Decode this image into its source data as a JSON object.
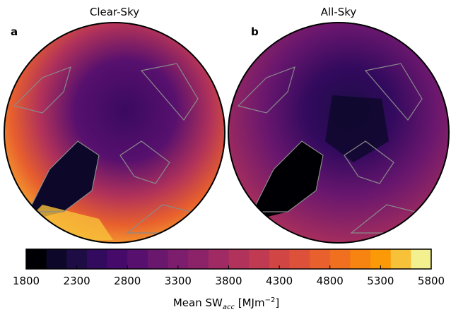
{
  "panels": [
    {
      "label": "a",
      "title": "Clear-Sky"
    },
    {
      "label": "b",
      "title": "All-Sky"
    }
  ],
  "colorbar": {
    "label": "Mean SW",
    "label_sub": "acc",
    "label_open": " [MJm",
    "label_sup": "−2",
    "label_close": "]",
    "lim": [
      1800,
      5800
    ],
    "ticks": [
      1800,
      2300,
      2800,
      3300,
      3800,
      4300,
      4800,
      5300,
      5800
    ],
    "colors": [
      "#000004",
      "#0d0829",
      "#1e0c45",
      "#320a5e",
      "#460b6a",
      "#57106e",
      "#6a176e",
      "#7c1d6d",
      "#8c2369",
      "#a02a63",
      "#b1325a",
      "#c03a51",
      "#d14645",
      "#dd513a",
      "#e8602d",
      "#f17020",
      "#f78311",
      "#fb9906",
      "#f8c13a",
      "#f2f08f"
    ]
  }
}
